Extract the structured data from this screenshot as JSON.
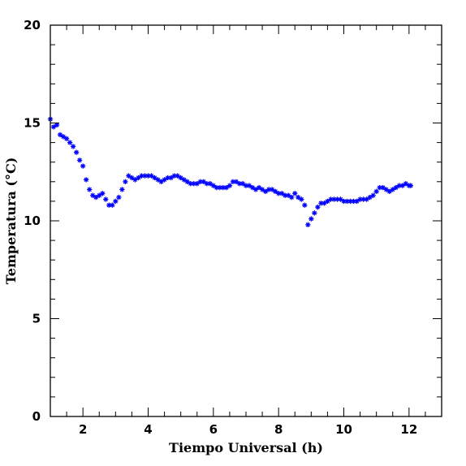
{
  "chart_data": {
    "type": "scatter",
    "xlabel": "Tiempo Universal (h)",
    "ylabel": "Temperatura (°C)",
    "xlim": [
      1,
      13
    ],
    "ylim": [
      0,
      20
    ],
    "x_ticks": [
      2,
      4,
      6,
      8,
      10,
      12
    ],
    "y_ticks": [
      0,
      5,
      10,
      15,
      20
    ],
    "marker": "asterisk",
    "marker_color": "#0000ff",
    "grid": false,
    "series": [
      {
        "x": [
          1.0,
          1.1,
          1.2,
          1.3,
          1.4,
          1.5,
          1.6,
          1.7,
          1.8,
          1.9,
          2.0,
          2.1,
          2.2,
          2.3,
          2.4,
          2.5,
          2.6,
          2.7,
          2.8,
          2.9,
          3.0,
          3.1,
          3.2,
          3.3,
          3.4,
          3.5,
          3.6,
          3.7,
          3.8,
          3.9,
          4.0,
          4.1,
          4.2,
          4.3,
          4.4,
          4.5,
          4.6,
          4.7,
          4.8,
          4.9,
          5.0,
          5.1,
          5.2,
          5.3,
          5.4,
          5.5,
          5.6,
          5.7,
          5.8,
          5.9,
          6.0,
          6.1,
          6.2,
          6.3,
          6.4,
          6.5,
          6.6,
          6.7,
          6.8,
          6.9,
          7.0,
          7.1,
          7.2,
          7.3,
          7.4,
          7.5,
          7.6,
          7.7,
          7.8,
          7.9,
          8.0,
          8.1,
          8.2,
          8.3,
          8.4,
          8.5,
          8.6,
          8.7,
          8.8,
          8.9,
          9.0,
          9.1,
          9.2,
          9.3,
          9.4,
          9.5,
          9.6,
          9.7,
          9.8,
          9.9,
          10.0,
          10.1,
          10.2,
          10.3,
          10.4,
          10.5,
          10.6,
          10.7,
          10.8,
          10.9,
          11.0,
          11.1,
          11.2,
          11.3,
          11.4,
          11.5,
          11.6,
          11.7,
          11.8,
          11.9,
          12.0,
          12.05
        ],
        "y": [
          15.2,
          14.8,
          14.9,
          14.4,
          14.3,
          14.2,
          14.0,
          13.8,
          13.5,
          13.1,
          12.8,
          12.1,
          11.6,
          11.3,
          11.2,
          11.3,
          11.4,
          11.1,
          10.8,
          10.8,
          11.0,
          11.2,
          11.6,
          12.0,
          12.3,
          12.2,
          12.1,
          12.2,
          12.3,
          12.3,
          12.3,
          12.3,
          12.2,
          12.1,
          12.0,
          12.1,
          12.2,
          12.2,
          12.3,
          12.3,
          12.2,
          12.1,
          12.0,
          11.9,
          11.9,
          11.9,
          12.0,
          12.0,
          11.9,
          11.9,
          11.8,
          11.7,
          11.7,
          11.7,
          11.7,
          11.8,
          12.0,
          12.0,
          11.9,
          11.9,
          11.8,
          11.8,
          11.7,
          11.6,
          11.7,
          11.6,
          11.5,
          11.6,
          11.6,
          11.5,
          11.4,
          11.4,
          11.3,
          11.3,
          11.2,
          11.4,
          11.2,
          11.1,
          10.8,
          9.8,
          10.1,
          10.4,
          10.7,
          10.9,
          10.9,
          11.0,
          11.1,
          11.1,
          11.1,
          11.1,
          11.0,
          11.0,
          11.0,
          11.0,
          11.0,
          11.1,
          11.1,
          11.1,
          11.2,
          11.3,
          11.5,
          11.7,
          11.7,
          11.6,
          11.5,
          11.6,
          11.7,
          11.8,
          11.8,
          11.9,
          11.8,
          11.8
        ]
      }
    ]
  }
}
